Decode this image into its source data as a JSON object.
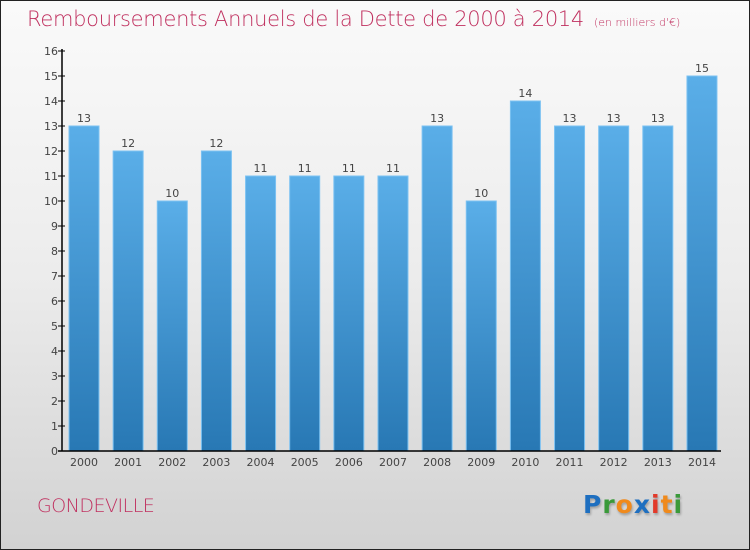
{
  "title": "Remboursements Annuels de la Dette de 2000 à 2014",
  "unit_note": "(en milliers d'€)",
  "town": "GONDEVILLE",
  "logo": {
    "letters": [
      {
        "char": "P",
        "color": "#1e6fc0"
      },
      {
        "char": "r",
        "color": "#3a9a3a"
      },
      {
        "char": "o",
        "color": "#f08a1c"
      },
      {
        "char": "x",
        "color": "#1e6fc0"
      },
      {
        "char": "i",
        "color": "#e23a2a"
      },
      {
        "char": "t",
        "color": "#f08a1c"
      },
      {
        "char": "i",
        "color": "#3a9a3a"
      }
    ]
  },
  "colors": {
    "title": "#c0305f",
    "bar_top": "#5aaee8",
    "bar_bottom": "#2878b4",
    "bar_edge": "#7cc2f2",
    "axis": "#000000",
    "label": "#444444"
  },
  "chart_data": {
    "type": "bar",
    "title": "Remboursements Annuels de la Dette de 2000 à 2014 (en milliers d'€)",
    "xlabel": "",
    "ylabel": "",
    "categories": [
      "2000",
      "2001",
      "2002",
      "2003",
      "2004",
      "2005",
      "2006",
      "2007",
      "2008",
      "2009",
      "2010",
      "2011",
      "2012",
      "2013",
      "2014"
    ],
    "values": [
      13,
      12,
      10,
      12,
      11,
      11,
      11,
      11,
      13,
      10,
      14,
      13,
      13,
      13,
      15
    ],
    "data_labels": [
      "13",
      "12",
      "10",
      "12",
      "11",
      "11",
      "11",
      "11",
      "13",
      "10",
      "14",
      "13",
      "13",
      "13",
      "15"
    ],
    "ylim": [
      0,
      16
    ],
    "yticks": [
      0,
      1,
      2,
      3,
      4,
      5,
      6,
      7,
      8,
      9,
      10,
      11,
      12,
      13,
      14,
      15,
      16
    ],
    "grid": false,
    "legend": "none"
  }
}
